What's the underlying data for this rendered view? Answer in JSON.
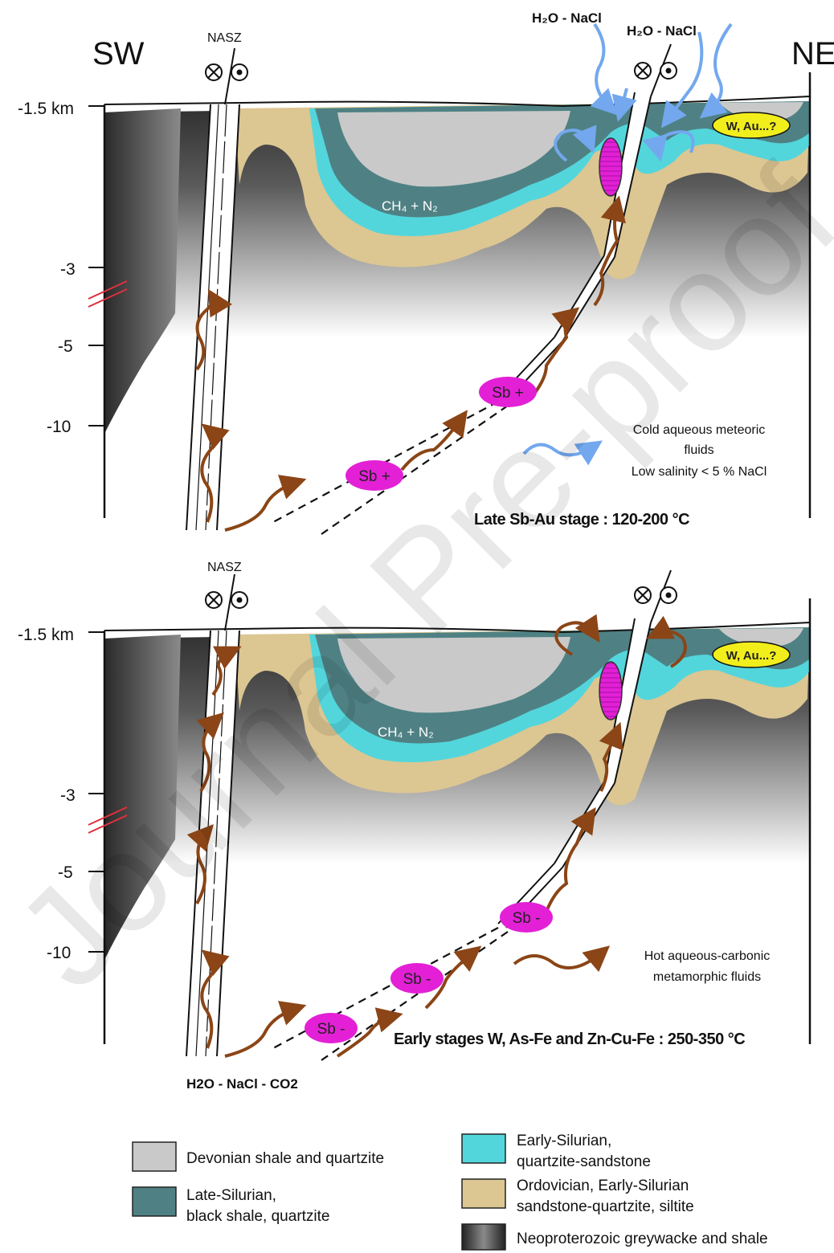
{
  "colors": {
    "devonian": "#c9c9c9",
    "late_silurian": "#4f8184",
    "early_silurian": "#52d6dc",
    "ordovician": "#dcc692",
    "neoproterozoic_dark": "#333333",
    "sb_lens": "#e320d6",
    "fluid_hot": "#8b4516",
    "fluid_cold": "#73a8ee",
    "wau": "#f2ee1c",
    "fault_marker": "#e0303c"
  },
  "icons": [
    "into-page-symbol",
    "out-of-page-symbol",
    "orebody-lens-icon",
    "hot-fluid-arrow-icon",
    "cold-fluid-arrow-icon"
  ],
  "directions": {
    "sw": "SW",
    "ne": "NE"
  },
  "panels": [
    {
      "depth_labels": [
        "-1.5 km",
        "-3",
        "-5",
        "-10"
      ],
      "shear_zone_label": "NASZ",
      "fluid_labels": [
        "H₂O - NaCl",
        "H₂O - NaCl"
      ],
      "gas_label": "CH₄ + N₂",
      "sb_labels": [
        "Sb +",
        "Sb +"
      ],
      "wau_label": "W, Au...?",
      "legend_note": [
        "Cold aqueous meteoric",
        "fluids",
        "Low salinity < 5 % NaCl"
      ],
      "stage_title": "Late Sb-Au stage : 120-200 °C"
    },
    {
      "depth_labels": [
        "-1.5 km",
        "-3",
        "-5",
        "-10"
      ],
      "shear_zone_label": "NASZ",
      "gas_label": "CH₄ + N₂",
      "sb_labels": [
        "Sb -",
        "Sb -",
        "Sb -"
      ],
      "wau_label": "W, Au...?",
      "legend_note": [
        "Hot aqueous-carbonic",
        "metamorphic fluids"
      ],
      "stage_title": "Early stages W, As-Fe and Zn-Cu-Fe : 250-350 °C",
      "bottom_fluid": "H2O - NaCl - CO2"
    }
  ],
  "legend": {
    "devonian": "Devonian shale and quartzite",
    "late_silurian": [
      "Late-Silurian,",
      "black shale, quartzite"
    ],
    "early_silurian": [
      "Early-Silurian,",
      "quartzite-sandstone"
    ],
    "ordovician": [
      "Ordovician, Early-Silurian",
      "sandstone-quartzite, siltite"
    ],
    "neoproterozoic": "Neoproterozoic greywacke and shale"
  },
  "watermark": "Journal Pre-proof"
}
